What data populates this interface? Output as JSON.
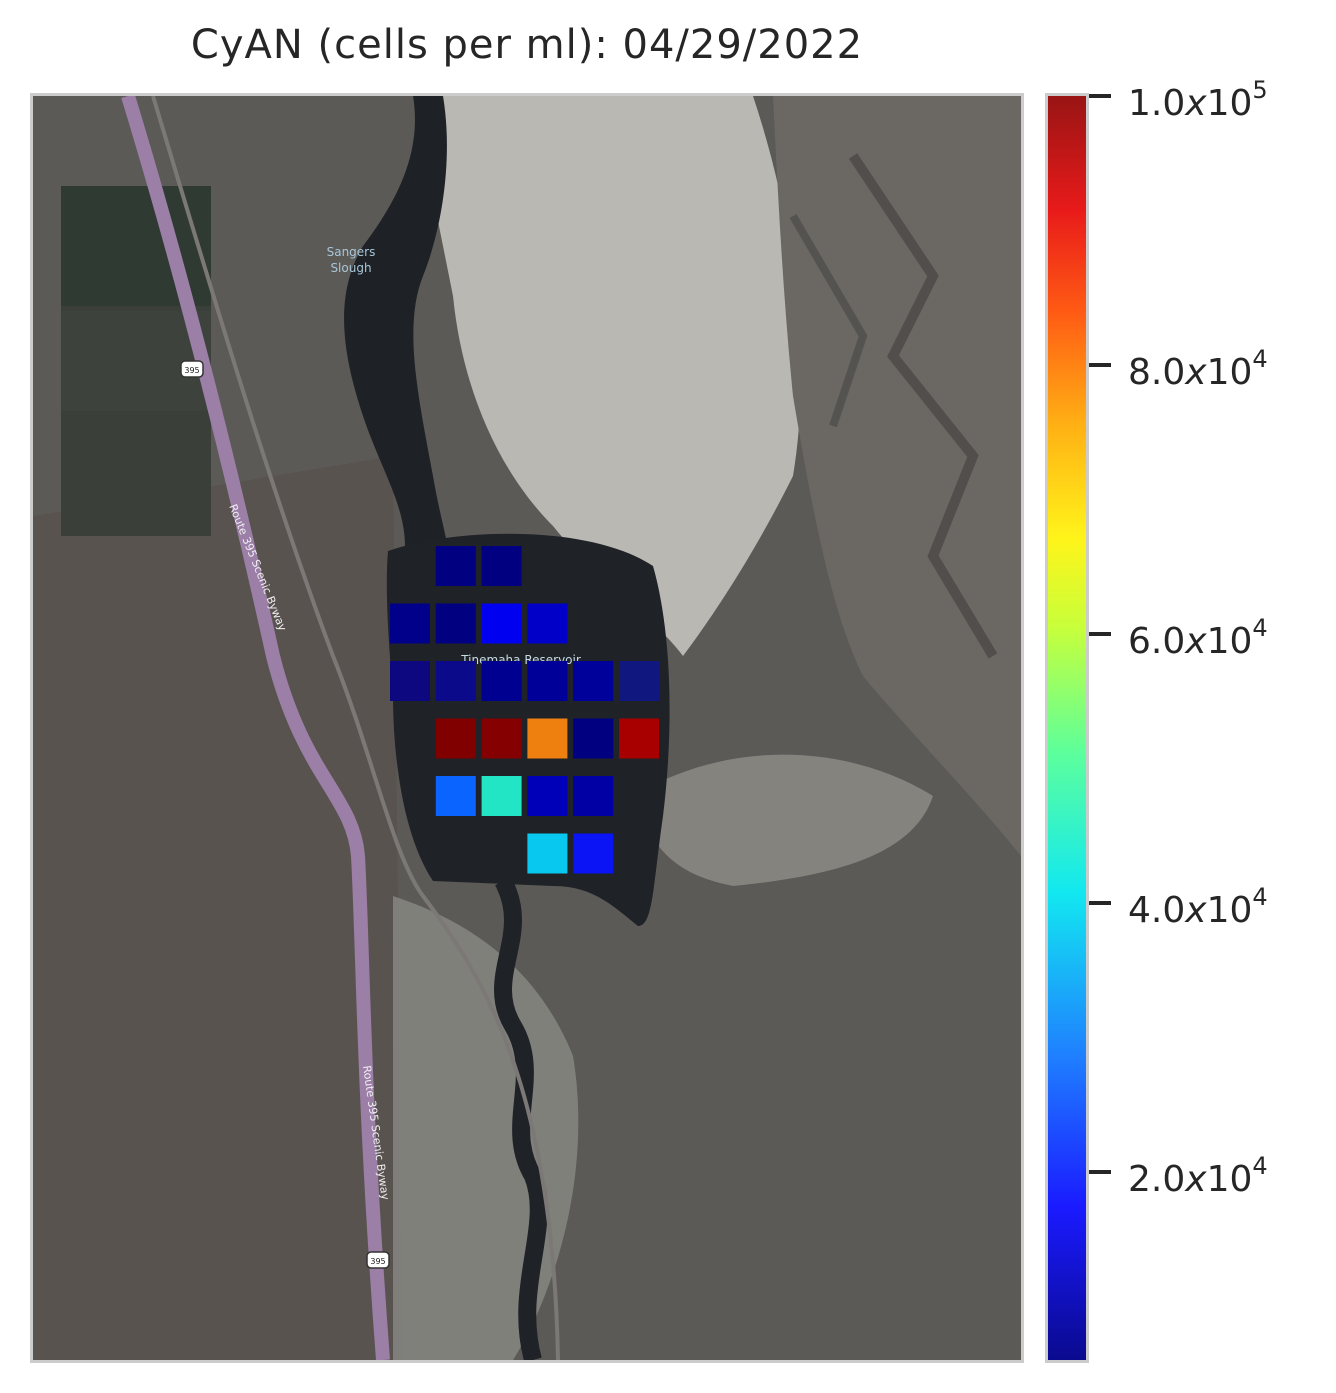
{
  "title": "CyAN (cells per ml): 04/29/2022",
  "map": {
    "labels": {
      "slough_line1": "Sangers",
      "slough_line2": "Slough",
      "reservoir": "Tinemaha Reservoir",
      "byway_north": "Route 395 Scenic Byway",
      "byway_south": "Route 395 Scenic Byway",
      "shield_north": "395",
      "shield_south": "395"
    },
    "colors": {
      "road": "#9b7fa6",
      "water": "#1f2227",
      "land": "#5f5d5a",
      "salt_flat": "#b8b7b2"
    }
  },
  "colorbar": {
    "colormap": "jet",
    "vmin": 6000,
    "vmax": 100000,
    "ticks": [
      {
        "value": 100000,
        "mantissa": "1.0",
        "x": "x",
        "base": "10",
        "exp": "5"
      },
      {
        "value": 80000,
        "mantissa": "8.0",
        "x": "x",
        "base": "10",
        "exp": "4"
      },
      {
        "value": 60000,
        "mantissa": "6.0",
        "x": "x",
        "base": "10",
        "exp": "4"
      },
      {
        "value": 40000,
        "mantissa": "4.0",
        "x": "x",
        "base": "10",
        "exp": "4"
      },
      {
        "value": 20000,
        "mantissa": "2.0",
        "x": "x",
        "base": "10",
        "exp": "4"
      }
    ]
  },
  "chart_data": {
    "type": "heatmap",
    "title": "CyAN (cells per ml): 04/29/2022",
    "units": "cells per ml",
    "grid_columns": 6,
    "grid_rows": 6,
    "cells": [
      {
        "row": 0,
        "col": 1,
        "value": 9000,
        "color": "#000080"
      },
      {
        "row": 0,
        "col": 2,
        "value": 9000,
        "color": "#000080"
      },
      {
        "row": 1,
        "col": 0,
        "value": 9500,
        "color": "#00008b"
      },
      {
        "row": 1,
        "col": 1,
        "value": 9000,
        "color": "#000080"
      },
      {
        "row": 1,
        "col": 2,
        "value": 16000,
        "color": "#0000f0"
      },
      {
        "row": 1,
        "col": 3,
        "value": 12000,
        "color": "#0000c8"
      },
      {
        "row": 2,
        "col": 0,
        "value": 8500,
        "color": "#0d0880"
      },
      {
        "row": 2,
        "col": 1,
        "value": 8500,
        "color": "#0b0a8a"
      },
      {
        "row": 2,
        "col": 2,
        "value": 9500,
        "color": "#000090"
      },
      {
        "row": 2,
        "col": 3,
        "value": 10000,
        "color": "#000098"
      },
      {
        "row": 2,
        "col": 4,
        "value": 10000,
        "color": "#00009a"
      },
      {
        "row": 2,
        "col": 5,
        "value": 7500,
        "color": "#101880"
      },
      {
        "row": 3,
        "col": 1,
        "value": 100000,
        "color": "#800000"
      },
      {
        "row": 3,
        "col": 2,
        "value": 100000,
        "color": "#850000"
      },
      {
        "row": 3,
        "col": 3,
        "value": 76000,
        "color": "#ee8010"
      },
      {
        "row": 3,
        "col": 4,
        "value": 9000,
        "color": "#000080"
      },
      {
        "row": 3,
        "col": 5,
        "value": 96000,
        "color": "#a80000"
      },
      {
        "row": 4,
        "col": 1,
        "value": 27000,
        "color": "#0a64ff"
      },
      {
        "row": 4,
        "col": 2,
        "value": 45000,
        "color": "#22e5c5"
      },
      {
        "row": 4,
        "col": 3,
        "value": 11000,
        "color": "#0000b8"
      },
      {
        "row": 4,
        "col": 4,
        "value": 10000,
        "color": "#0000a5"
      },
      {
        "row": 5,
        "col": 3,
        "value": 38000,
        "color": "#08c8ef"
      },
      {
        "row": 5,
        "col": 4,
        "value": 17000,
        "color": "#0a14f5"
      }
    ]
  }
}
